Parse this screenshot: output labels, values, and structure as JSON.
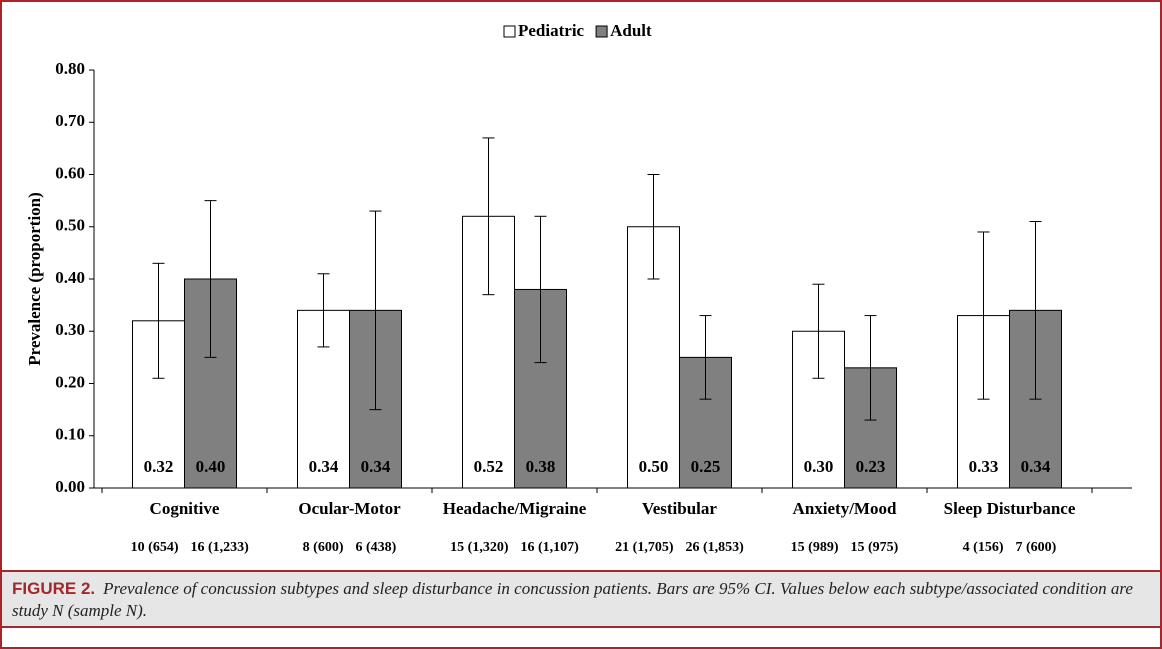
{
  "chart_data": {
    "type": "bar",
    "y_label": "Prevalence (proportion)",
    "categories": [
      "Cognitive",
      "Ocular-Motor",
      "Headache/Migraine",
      "Vestibular",
      "Anxiety/Mood",
      "Sleep Disturbance"
    ],
    "series": [
      {
        "name": "Pediatric",
        "color": "#ffffff",
        "values": [
          0.32,
          0.34,
          0.52,
          0.5,
          0.3,
          0.33
        ],
        "value_labels": [
          "0.32",
          "0.34",
          "0.52",
          "0.50",
          "0.30",
          "0.33"
        ],
        "ci_low": [
          0.21,
          0.27,
          0.37,
          0.4,
          0.21,
          0.17
        ],
        "ci_high": [
          0.43,
          0.41,
          0.67,
          0.6,
          0.39,
          0.49
        ],
        "study_n_labels": [
          "10 (654)",
          "8 (600)",
          "15 (1,320)",
          "21 (1,705)",
          "15 (989)",
          "4 (156)"
        ]
      },
      {
        "name": "Adult",
        "color": "#808080",
        "values": [
          0.4,
          0.34,
          0.38,
          0.25,
          0.23,
          0.34
        ],
        "value_labels": [
          "0.40",
          "0.34",
          "0.38",
          "0.25",
          "0.23",
          "0.34"
        ],
        "ci_low": [
          0.25,
          0.15,
          0.24,
          0.17,
          0.13,
          0.17
        ],
        "ci_high": [
          0.55,
          0.53,
          0.52,
          0.33,
          0.33,
          0.51
        ],
        "study_n_labels": [
          "16 (1,233)",
          "6 (438)",
          "16 (1,107)",
          "26 (1,853)",
          "15 (975)",
          "7 (600)"
        ]
      }
    ],
    "ylim": [
      0,
      0.8
    ],
    "yticks": [
      {
        "value": 0,
        "label": "0.00"
      },
      {
        "value": 0.1,
        "label": "0.10"
      },
      {
        "value": 0.2,
        "label": "0.20"
      },
      {
        "value": 0.3,
        "label": "0.30"
      },
      {
        "value": 0.4,
        "label": "0.40"
      },
      {
        "value": 0.5,
        "label": "0.50"
      },
      {
        "value": 0.6,
        "label": "0.60"
      },
      {
        "value": 0.7,
        "label": "0.70"
      },
      {
        "value": 0.8,
        "label": "0.80"
      }
    ],
    "grid": false,
    "legend": "top"
  },
  "caption": {
    "label": "FIGURE 2.",
    "text": "Prevalence of concussion subtypes and sleep disturbance in concussion patients. Bars are 95% CI. Values below each subtype/associated condition are study N (sample N)."
  }
}
